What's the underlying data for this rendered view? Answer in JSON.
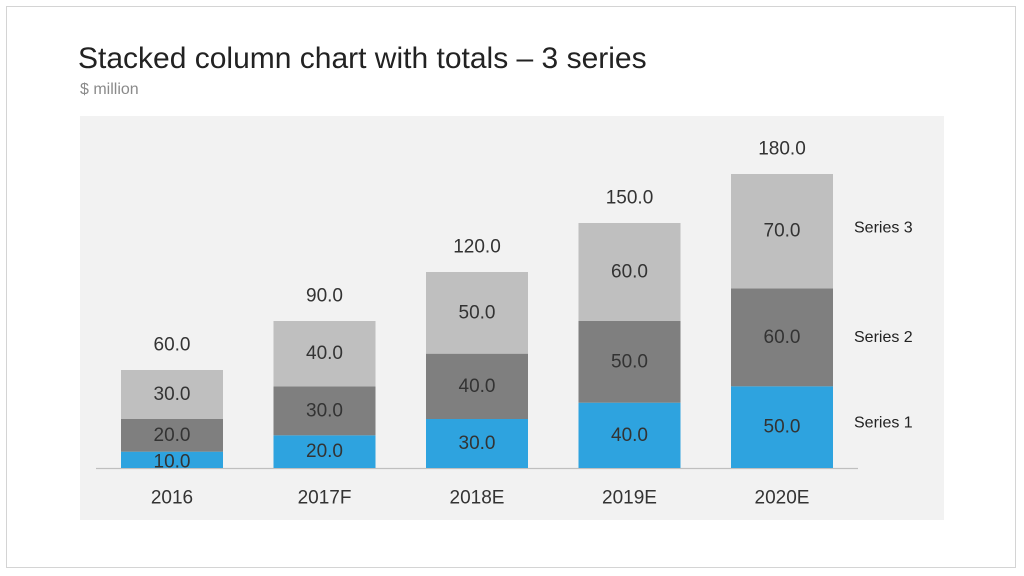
{
  "slide": {
    "title": "Stacked column chart with totals – 3 series",
    "subtitle": "$ million"
  },
  "colors": {
    "series_1": "#2ea3df",
    "series_2": "#7f7f7f",
    "series_3": "#bfbfbf",
    "plot_background": "#f2f2f2",
    "axis_line": "#bfbfbf",
    "text": "#333333"
  },
  "chart_data": {
    "type": "bar",
    "stacked": true,
    "title": "Stacked column chart with totals – 3 series",
    "subtitle": "$ million",
    "categories": [
      "2016",
      "2017F",
      "2018E",
      "2019E",
      "2020E"
    ],
    "series": [
      {
        "name": "Series 1",
        "values": [
          10,
          20,
          30,
          40,
          50
        ]
      },
      {
        "name": "Series 2",
        "values": [
          20,
          30,
          40,
          50,
          60
        ]
      },
      {
        "name": "Series 3",
        "values": [
          30,
          40,
          50,
          60,
          70
        ]
      }
    ],
    "totals": [
      60,
      90,
      120,
      150,
      180
    ],
    "value_labels": [
      [
        "10.0",
        "20.0",
        "30.0",
        "40.0",
        "50.0"
      ],
      [
        "20.0",
        "30.0",
        "40.0",
        "50.0",
        "60.0"
      ],
      [
        "30.0",
        "40.0",
        "50.0",
        "60.0",
        "70.0"
      ]
    ],
    "total_labels": [
      "60.0",
      "90.0",
      "120.0",
      "150.0",
      "180.0"
    ],
    "ylim": [
      0,
      180
    ],
    "grid": false,
    "legend": "right (labels beside last column)",
    "xlabel": "",
    "ylabel": ""
  }
}
